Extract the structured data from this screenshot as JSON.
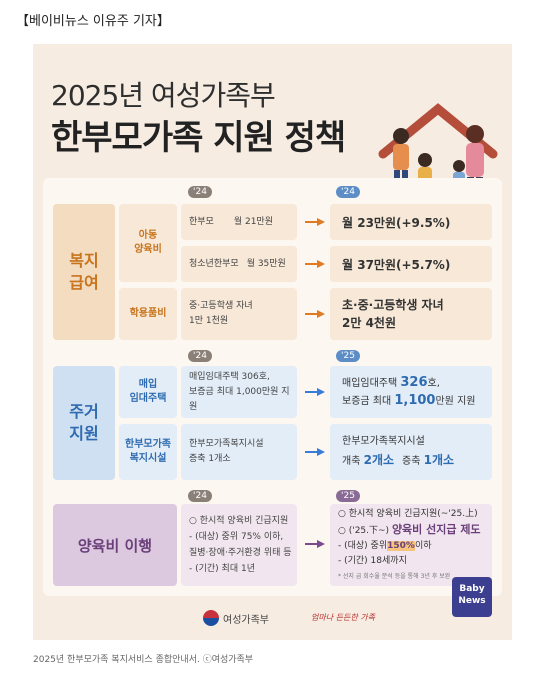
{
  "byline": "【베이비뉴스 이유주 기자】",
  "poster": {
    "title_line1": "2025년 여성가족부",
    "title_line2": "한부모가족 지원 정책",
    "year_old": "'24",
    "year_new": "'25",
    "welfare": {
      "category": "복지\n급여",
      "child_support": {
        "label": "아동\n양육비",
        "rows": [
          {
            "old_who": "한부모",
            "old_amount": "월 21만원",
            "new": "월 23만원(+9.5%)"
          },
          {
            "old_who": "청소년한부모",
            "old_amount": "월 35만원",
            "new": "월 37만원(+5.7%)"
          }
        ]
      },
      "school_supplies": {
        "label": "학용품비",
        "old": "중·고등학생 자녀\n1만 1천원",
        "new": "초·중·고등학생 자녀\n2만 4천원"
      }
    },
    "housing": {
      "category": "주거\n지원",
      "rental": {
        "label": "매입\n임대주택",
        "old": "매입임대주택 306호,\n보증금 최대 1,000만원 지원",
        "new_prefix": "매입임대주택 ",
        "new_count": "326",
        "new_mid": "호,\n보증금 최대 ",
        "new_amount": "1,100",
        "new_suffix": "만원 지원"
      },
      "facility": {
        "label": "한부모가족\n복지시설",
        "old": "한부모가족복지시설\n증축 1개소",
        "new_line1": "한부모가족복지시설",
        "new_a_label": "개축 ",
        "new_a_value": "2개소",
        "new_b_label": "증축 ",
        "new_b_value": "1개소"
      }
    },
    "childcare_enforcement": {
      "category": "양육비 이행",
      "old_lines": [
        "○ 한시적 양육비 긴급지원",
        "- (대상) 중위 75% 이하,",
        "질병·장애·주거환경 위태 등",
        "- (기간) 최대 1년"
      ],
      "new_line1": "○ 한시적 양육비 긴급지원(~'25.上)",
      "new_line2_prefix": "○ ('25.下~) ",
      "new_line2_highlight": "양육비 선지급 제도",
      "new_line3_prefix": "- (대상) 중위",
      "new_line3_highlight": "150%",
      "new_line3_suffix": "이하",
      "new_line4": "- (기간) 18세까지",
      "note": "* 선지 급 회수율 분석 등을 통해 3년 후 보완"
    },
    "footer_org": "여성가족부",
    "footer_slogan": "엄마나 든든한 가족",
    "brand": "Baby\nNews"
  },
  "caption": "2025년 한부모가족 복지서비스 종합안내서. ⓒ여성가족부",
  "colors": {
    "welfare": "#f4dcc1",
    "housing": "#cfe0f2",
    "childcare": "#dcc9e0",
    "accent_orange": "#e07a23",
    "accent_blue": "#3a7bd5"
  }
}
